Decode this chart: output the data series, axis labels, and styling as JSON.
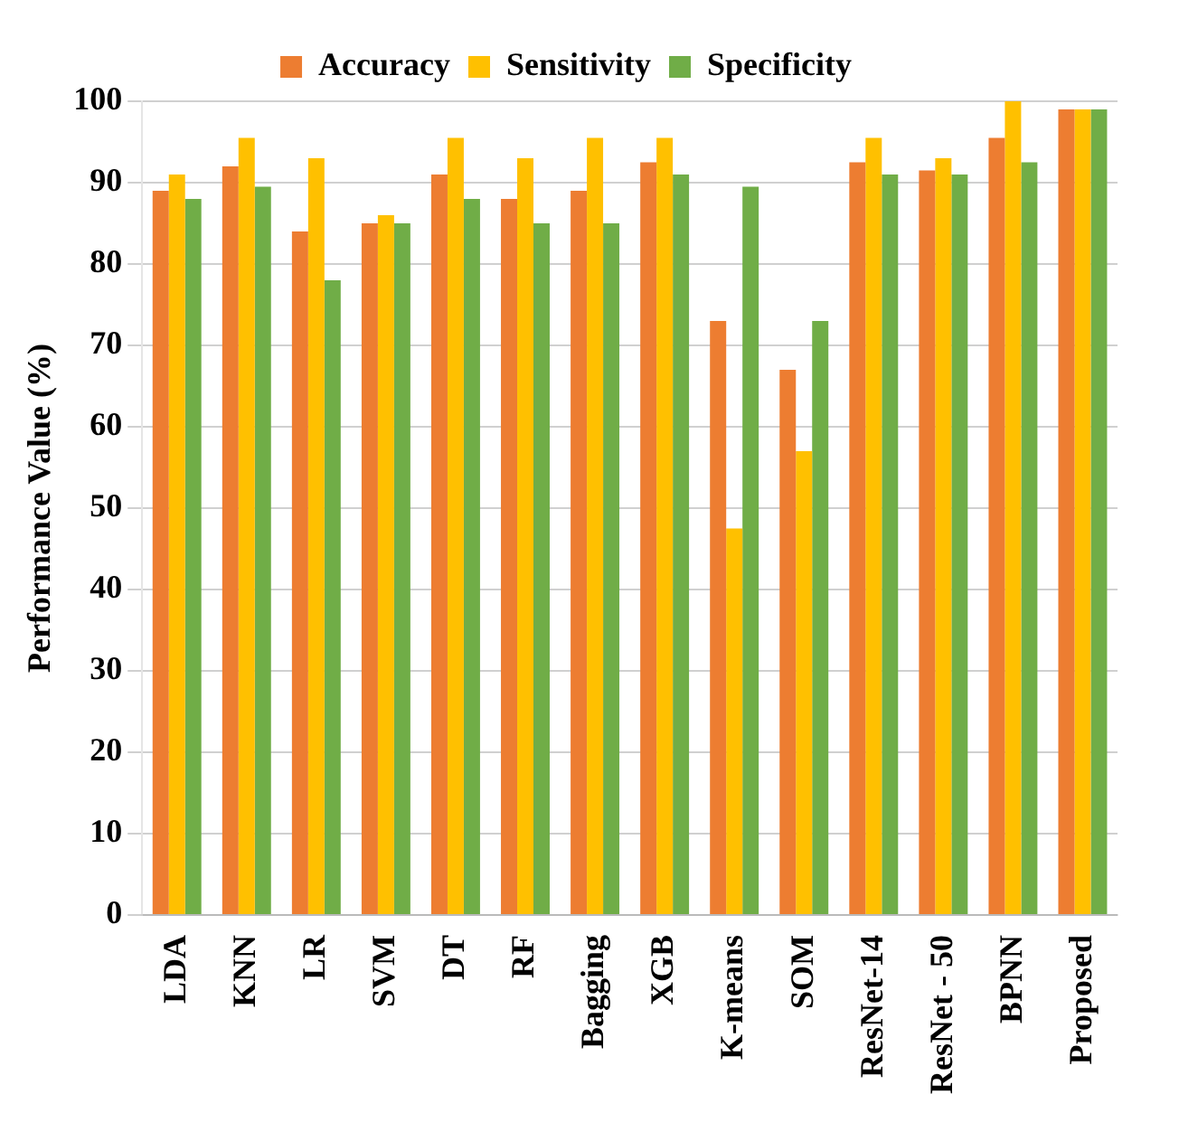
{
  "chart_data": {
    "type": "bar",
    "ylabel": "Performance Value (%)",
    "categories": [
      "LDA",
      "KNN",
      "LR",
      "SVM",
      "DT",
      "RF",
      "Bagging",
      "XGB",
      "K-means",
      "SOM",
      "ResNet-14",
      "ResNet - 50",
      "BPNN",
      "Proposed"
    ],
    "series": [
      {
        "name": "Accuracy",
        "color": "#ed7d31",
        "values": [
          89,
          92,
          84,
          85,
          91,
          88,
          89,
          92.5,
          73,
          67,
          92.5,
          91.5,
          95.5,
          99
        ]
      },
      {
        "name": "Sensitivity",
        "color": "#ffc000",
        "values": [
          91,
          95.5,
          93,
          86,
          95.5,
          93,
          95.5,
          95.5,
          47.5,
          57,
          95.5,
          93,
          100,
          99
        ]
      },
      {
        "name": "Specificity",
        "color": "#70ad47",
        "values": [
          88,
          89.5,
          78,
          85,
          88,
          85,
          85,
          91,
          89.5,
          73,
          91,
          91,
          92.5,
          99
        ]
      }
    ],
    "ylim": [
      0,
      100
    ],
    "yticks": [
      0,
      10,
      20,
      30,
      40,
      50,
      60,
      70,
      80,
      90,
      100
    ],
    "grid": "y",
    "legend": "top"
  }
}
